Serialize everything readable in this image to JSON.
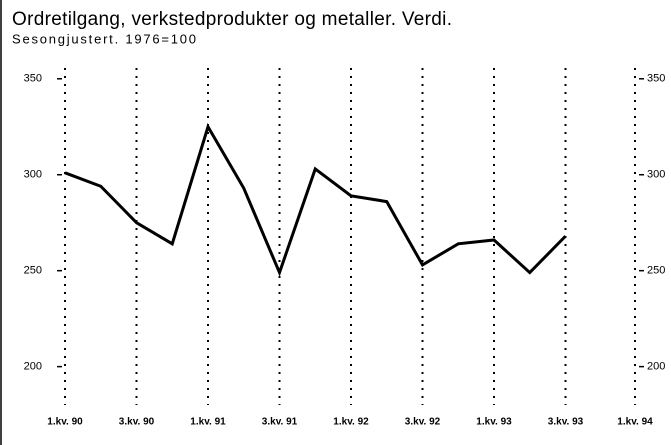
{
  "chart_data": {
    "type": "line",
    "title": "Ordretilgang, verkstedprodukter og metaller. Verdi.",
    "subtitle": "Sesongjustert. 1976=100",
    "categories": [
      "1.kv. 90",
      null,
      "3.kv. 90",
      null,
      "1.kv. 91",
      null,
      "3.kv. 91",
      null,
      "1.kv. 92",
      null,
      "3.kv. 92",
      null,
      "1.kv. 93",
      null,
      "3.kv. 93",
      null,
      "1.kv. 94"
    ],
    "series": [
      {
        "color": "#000000",
        "values": [
          301,
          294,
          275,
          264,
          325,
          293,
          249,
          303,
          289,
          286,
          253,
          264,
          266,
          249,
          268,
          null,
          null
        ]
      }
    ],
    "ylim": [
      180,
      365
    ],
    "yticks": [
      200,
      250,
      300,
      350
    ],
    "y2lim": [
      180,
      365
    ],
    "y2ticks": [
      200,
      250,
      300,
      350
    ],
    "grid": true
  }
}
